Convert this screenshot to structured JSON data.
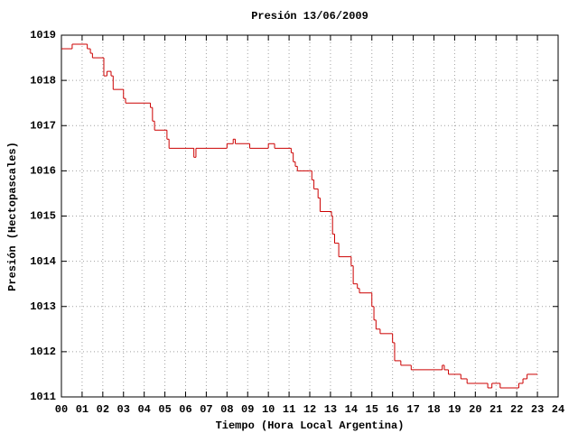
{
  "chart_data": {
    "type": "step",
    "title": "Presión 13/06/2009",
    "x_label": "Tiempo (Hora Local Argentina)",
    "y_label": "Presión (Hectopascales)",
    "series": [
      {
        "name": "Presión",
        "color": "#cc0000",
        "x": [
          0,
          0.52,
          1.25,
          1.4,
          1.5,
          2.05,
          2.2,
          2.4,
          2.5,
          3.0,
          3.1,
          4.3,
          4.4,
          4.5,
          5.1,
          5.2,
          6.4,
          6.5,
          8.0,
          8.3,
          8.4,
          9.1,
          10.0,
          10.3,
          11.1,
          11.2,
          11.3,
          11.4,
          12.1,
          12.2,
          12.4,
          12.5,
          13.05,
          13.1,
          13.2,
          13.4,
          14.0,
          14.1,
          14.3,
          14.4,
          15.0,
          15.1,
          15.2,
          15.4,
          16.0,
          16.1,
          16.4,
          16.9,
          18.4,
          18.5,
          18.7,
          19.3,
          19.6,
          20.6,
          20.8,
          21.2,
          22.1,
          22.3,
          22.5,
          23.0
        ],
        "values": [
          1018.7,
          1018.8,
          1018.7,
          1018.6,
          1018.5,
          1018.1,
          1018.2,
          1018.1,
          1017.8,
          1017.6,
          1017.5,
          1017.4,
          1017.1,
          1016.9,
          1016.7,
          1016.5,
          1016.3,
          1016.5,
          1016.6,
          1016.7,
          1016.6,
          1016.5,
          1016.6,
          1016.5,
          1016.4,
          1016.2,
          1016.1,
          1016.0,
          1015.8,
          1015.6,
          1015.4,
          1015.1,
          1015.0,
          1014.6,
          1014.4,
          1014.1,
          1013.9,
          1013.5,
          1013.4,
          1013.3,
          1013.0,
          1012.7,
          1012.5,
          1012.4,
          1012.2,
          1011.8,
          1011.7,
          1011.6,
          1011.7,
          1011.6,
          1011.5,
          1011.4,
          1011.3,
          1011.2,
          1011.3,
          1011.2,
          1011.3,
          1011.4,
          1011.5,
          1011.5
        ]
      }
    ],
    "xlim": [
      0,
      24
    ],
    "xticks": [
      {
        "value": 0,
        "label": "00"
      },
      {
        "value": 1,
        "label": "01"
      },
      {
        "value": 2,
        "label": "02"
      },
      {
        "value": 3,
        "label": "03"
      },
      {
        "value": 4,
        "label": "04"
      },
      {
        "value": 5,
        "label": "05"
      },
      {
        "value": 6,
        "label": "06"
      },
      {
        "value": 7,
        "label": "07"
      },
      {
        "value": 8,
        "label": "08"
      },
      {
        "value": 9,
        "label": "09"
      },
      10,
      11,
      12,
      13,
      14,
      15,
      16,
      17,
      18,
      19,
      20,
      21,
      22,
      23,
      24
    ],
    "ylim": [
      1011,
      1019
    ],
    "yticks": [
      1011,
      1012,
      1013,
      1014,
      1015,
      1016,
      1017,
      1018,
      1019
    ],
    "grid": true
  }
}
